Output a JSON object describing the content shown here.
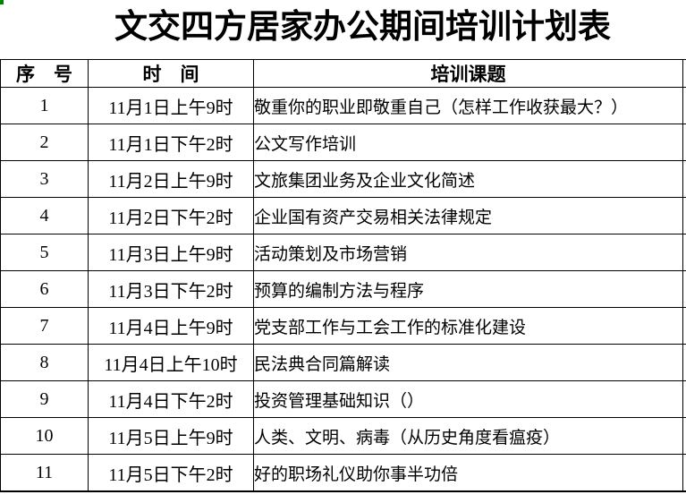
{
  "title": "文交四方居家办公期间培训计划表",
  "colors": {
    "background": "#ffffff",
    "text": "#000000",
    "table_border": "#000000",
    "corner_artifact_green": "#008000"
  },
  "table": {
    "headers": {
      "no": "序　号",
      "time": "时　间",
      "topic": "培训课题"
    },
    "rows": [
      {
        "no": "1",
        "time": "11月1日上午9时",
        "topic": "敬重你的职业即敬重自己（怎样工作收获最大？）"
      },
      {
        "no": "2",
        "time": "11月1日下午2时",
        "topic": "公文写作培训"
      },
      {
        "no": "3",
        "time": "11月2日上午9时",
        "topic": "文旅集团业务及企业文化简述"
      },
      {
        "no": "4",
        "time": "11月2日下午2时",
        "topic": "企业国有资产交易相关法律规定"
      },
      {
        "no": "5",
        "time": "11月3日上午9时",
        "topic": "活动策划及市场营销"
      },
      {
        "no": "6",
        "time": "11月3日下午2时",
        "topic": "预算的编制方法与程序"
      },
      {
        "no": "7",
        "time": "11月4日上午9时",
        "topic": "党支部工作与工会工作的标准化建设"
      },
      {
        "no": "8",
        "time": "11月4日上午10时",
        "topic": "民法典合同篇解读"
      },
      {
        "no": "9",
        "time": "11月4日下午2时",
        "topic": "投资管理基础知识（）"
      },
      {
        "no": "10",
        "time": "11月5日上午9时",
        "topic": "人类、文明、病毒（从历史角度看瘟疫）"
      },
      {
        "no": "11",
        "time": "11月5日下午2时",
        "topic": "好的职场礼仪助你事半功倍"
      }
    ]
  }
}
